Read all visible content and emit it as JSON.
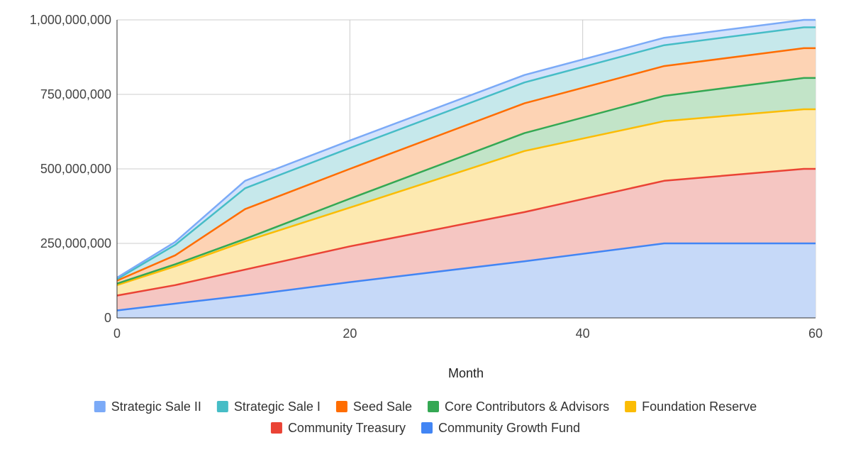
{
  "chart_data": {
    "type": "area",
    "stacked": true,
    "title": "",
    "xlabel": "Month",
    "ylabel": "",
    "xlim": [
      0,
      60
    ],
    "ylim": [
      0,
      1000000000
    ],
    "x_ticks": [
      "0",
      "20",
      "40",
      "60"
    ],
    "y_ticks": [
      "0",
      "250,000,000",
      "500,000,000",
      "750,000,000",
      "1,000,000,000"
    ],
    "grid": true,
    "legend_position": "bottom",
    "x": [
      0,
      5,
      11,
      20,
      35,
      47,
      59,
      60
    ],
    "series": [
      {
        "name": "Community Growth Fund",
        "color": "#4285f4",
        "fill": "#c6d9f8",
        "values": [
          25000000,
          48000000,
          75000000,
          120000000,
          190000000,
          250000000,
          250000000,
          250000000
        ]
      },
      {
        "name": "Community Treasury",
        "color": "#ea4335",
        "fill": "#f5c6c2",
        "values": [
          50000000,
          62000000,
          87000000,
          120000000,
          165000000,
          210000000,
          250000000,
          250000000
        ]
      },
      {
        "name": "Foundation Reserve",
        "color": "#fbbc04",
        "fill": "#fde9b0",
        "values": [
          35000000,
          63000000,
          95000000,
          130000000,
          205000000,
          200000000,
          200000000,
          200000000
        ]
      },
      {
        "name": "Core Contributors & Advisors",
        "color": "#34a853",
        "fill": "#c2e4c8",
        "values": [
          5000000,
          7000000,
          8000000,
          30000000,
          60000000,
          85000000,
          105000000,
          105000000
        ]
      },
      {
        "name": "Seed Sale",
        "color": "#ff6d01",
        "fill": "#fdd3b4",
        "values": [
          10000000,
          30000000,
          100000000,
          100000000,
          100000000,
          100000000,
          100000000,
          100000000
        ]
      },
      {
        "name": "Strategic Sale I",
        "color": "#46bdc6",
        "fill": "#c6e8eb",
        "values": [
          5000000,
          35000000,
          70000000,
          70000000,
          70000000,
          70000000,
          70000000,
          70000000
        ]
      },
      {
        "name": "Strategic Sale II",
        "color": "#7baaf7",
        "fill": "#d3e2fb",
        "values": [
          5000000,
          10000000,
          25000000,
          25000000,
          25000000,
          25000000,
          25000000,
          25000000
        ]
      }
    ],
    "legend_order": [
      "Strategic Sale II",
      "Strategic Sale I",
      "Seed Sale",
      "Core Contributors & Advisors",
      "Foundation Reserve",
      "Community Treasury",
      "Community Growth Fund"
    ]
  }
}
